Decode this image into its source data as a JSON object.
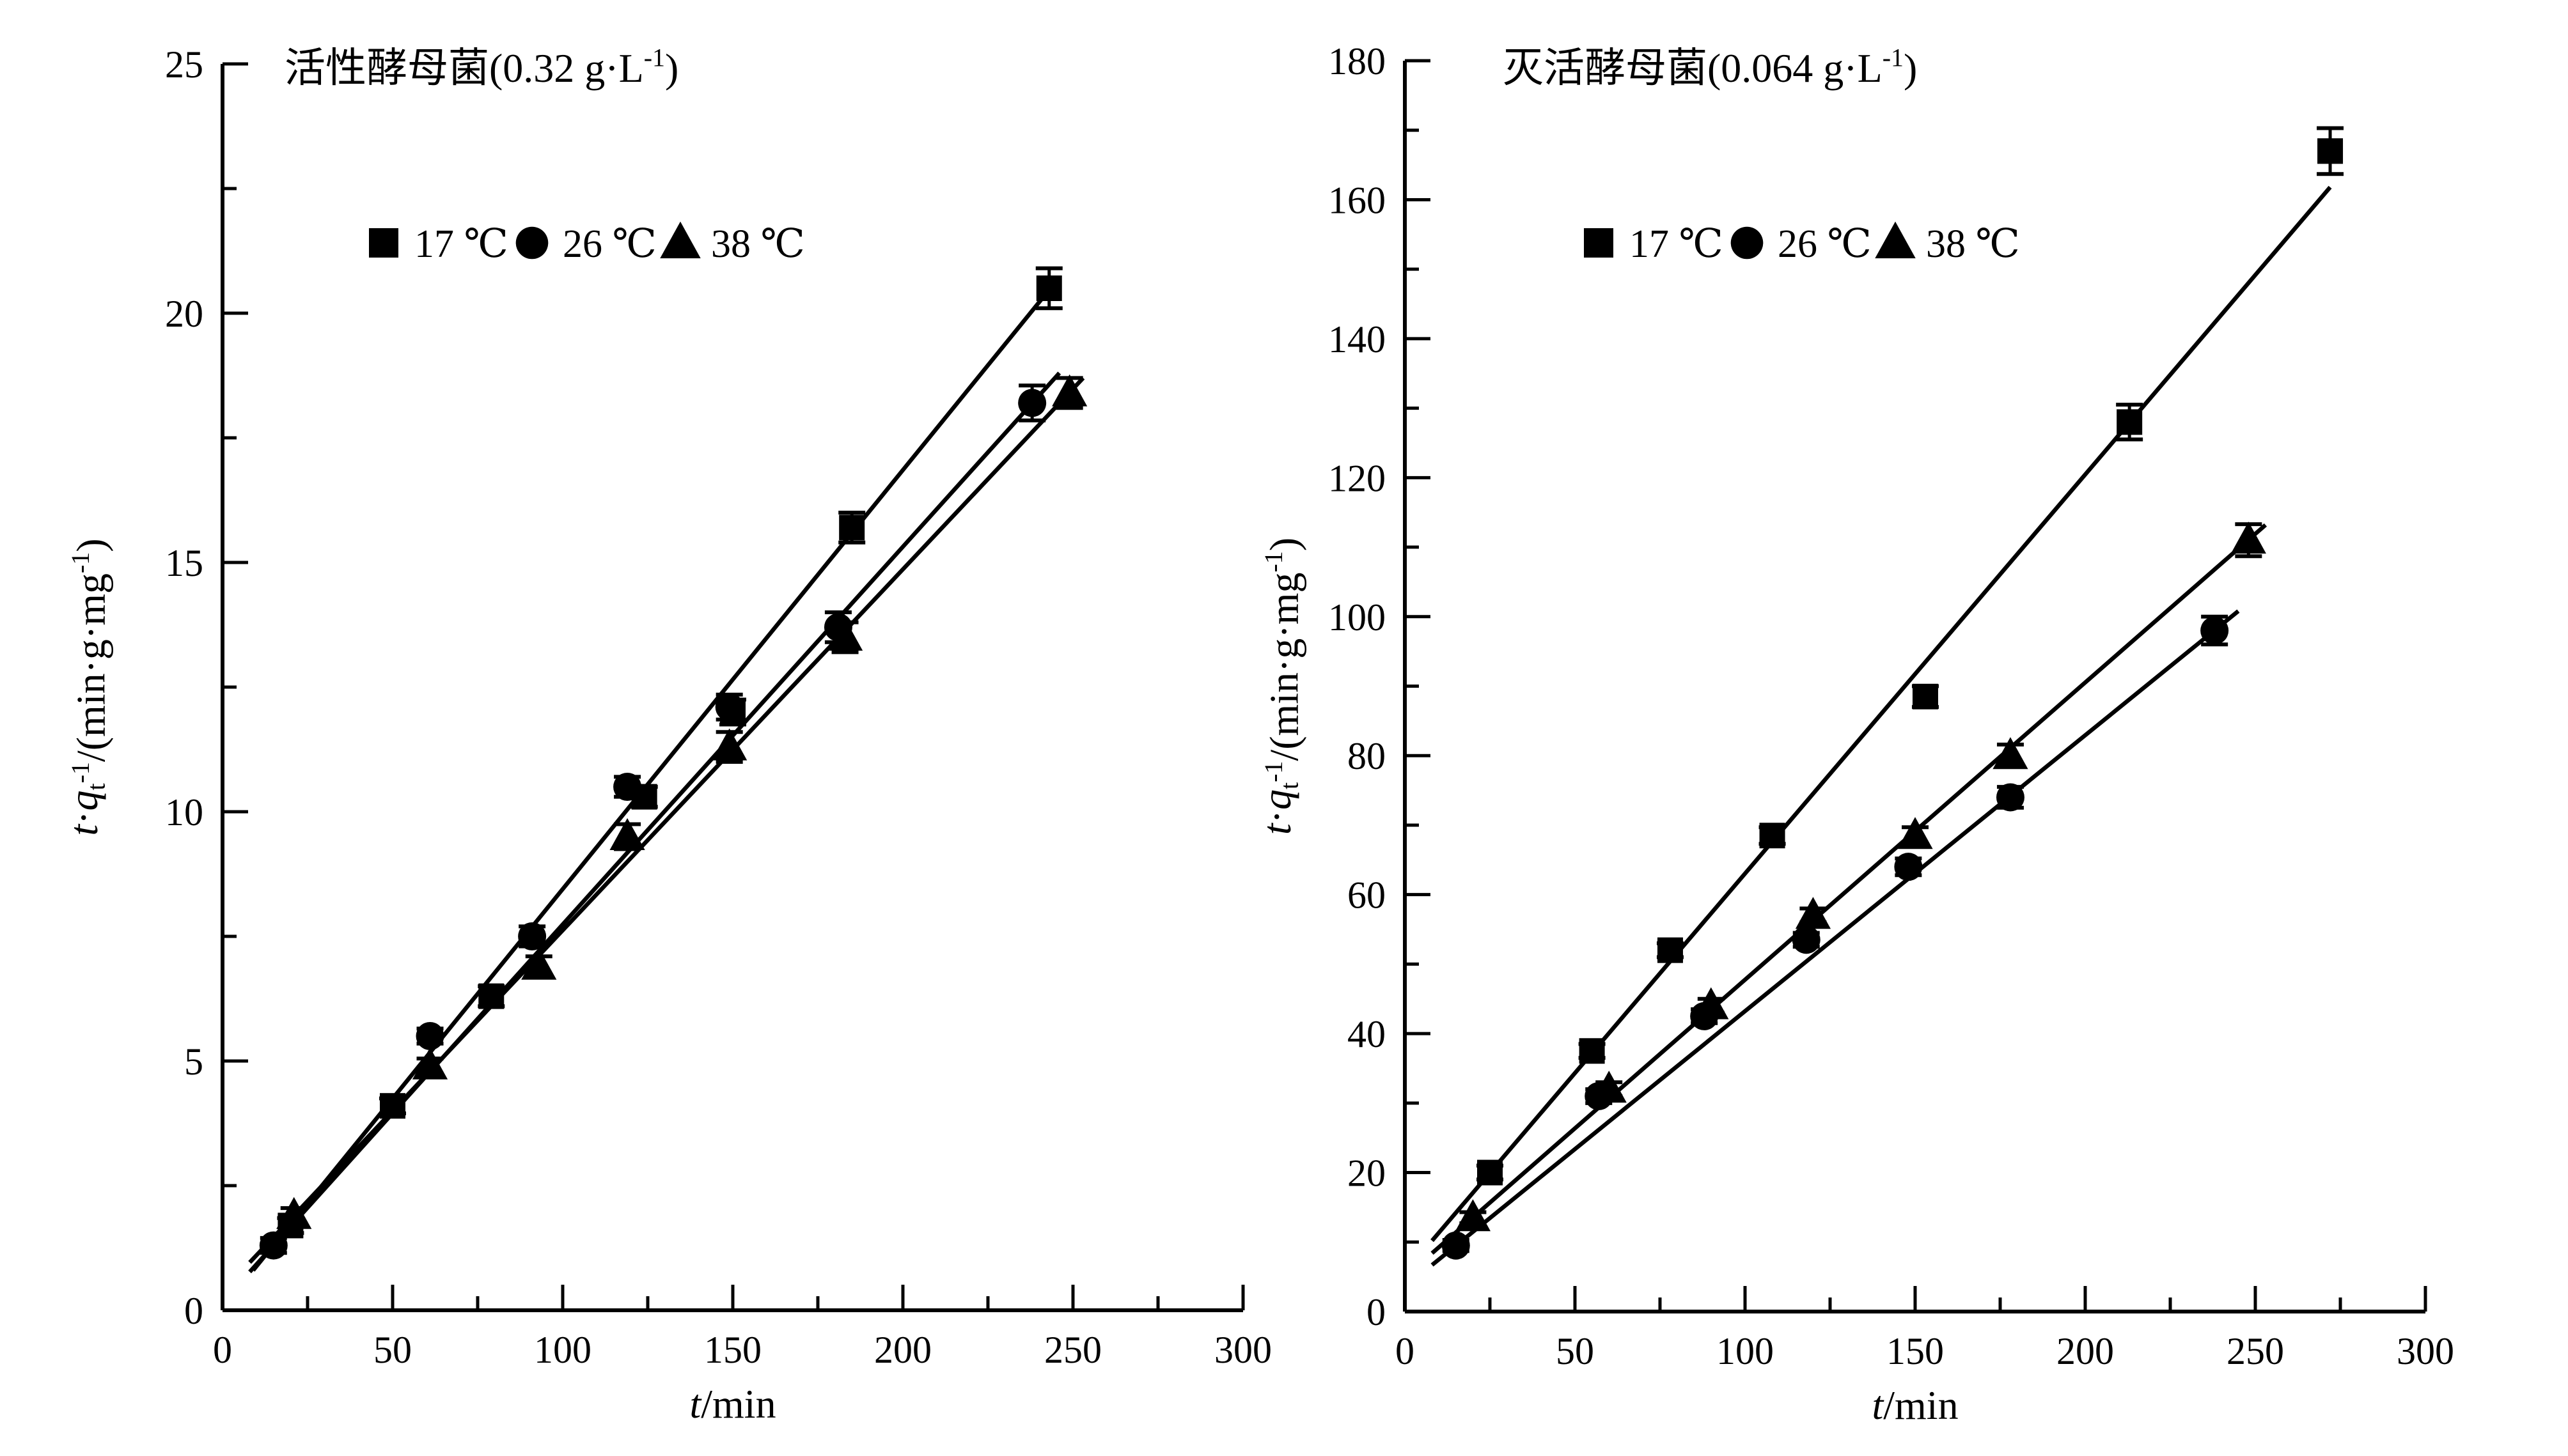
{
  "figure": {
    "background": "#ffffff",
    "ink_color": "#000000",
    "legend_items": [
      {
        "marker": "square",
        "label": "17 ℃"
      },
      {
        "marker": "circle",
        "label": "26 ℃"
      },
      {
        "marker": "triangle",
        "label": "38 ℃"
      }
    ]
  },
  "chart_data": [
    {
      "type": "scatter",
      "title_segments": [
        {
          "t": "活性酵母菌(0.32 g·L"
        },
        {
          "t": "-1",
          "sup": true
        },
        {
          "t": ")"
        }
      ],
      "title_plain": "活性酵母菌(0.32 g·L-1)",
      "xlabel_segments": [
        {
          "t": "t",
          "i": true
        },
        {
          "t": "/min"
        }
      ],
      "ylabel_segments": [
        {
          "t": "t",
          "i": true
        },
        {
          "t": "·"
        },
        {
          "t": "q",
          "i": true
        },
        {
          "t": "t",
          "sub": true
        },
        {
          "t": "-1",
          "sup": true
        },
        {
          "t": "/(min·g·mg"
        },
        {
          "t": "-1",
          "sup": true
        },
        {
          "t": ")"
        }
      ],
      "xlim": [
        0,
        300
      ],
      "ylim": [
        0,
        25
      ],
      "xticks": [
        0,
        50,
        100,
        150,
        200,
        250,
        300
      ],
      "yticks": [
        0,
        5,
        10,
        15,
        20,
        25
      ],
      "x_minor_step": 25,
      "y_minor_step": 2.5,
      "grid": false,
      "legend_position": "upper-left-inside",
      "series": [
        {
          "name": "17 ℃",
          "marker": "square",
          "points": [
            [
              20,
              1.7,
              0.15
            ],
            [
              50,
              4.1,
              0.15
            ],
            [
              79,
              6.3,
              0.2
            ],
            [
              124,
              10.3,
              0.2
            ],
            [
              150,
              12.0,
              0.25
            ],
            [
              185,
              15.7,
              0.3
            ],
            [
              243,
              20.5,
              0.4
            ]
          ],
          "fit": [
            [
              9,
              0.8
            ],
            [
              241,
              20.3
            ]
          ]
        },
        {
          "name": "26 ℃",
          "marker": "circle",
          "points": [
            [
              15,
              1.3,
              0.15
            ],
            [
              61,
              5.5,
              0.15
            ],
            [
              91,
              7.5,
              0.2
            ],
            [
              119,
              10.5,
              0.2
            ],
            [
              149,
              12.1,
              0.25
            ],
            [
              181,
              13.7,
              0.3
            ],
            [
              238,
              18.2,
              0.35
            ]
          ],
          "fit": [
            [
              8,
              0.77
            ],
            [
              246,
              18.8
            ]
          ]
        },
        {
          "name": "38 ℃",
          "marker": "triangle",
          "points": [
            [
              21,
              1.9,
              0.15
            ],
            [
              61,
              4.9,
              0.15
            ],
            [
              93,
              6.9,
              0.2
            ],
            [
              119,
              9.5,
              0.25
            ],
            [
              149,
              11.3,
              0.3
            ],
            [
              183,
              13.5,
              0.3
            ],
            [
              249,
              18.4,
              0.3
            ]
          ],
          "fit": [
            [
              8,
              0.96
            ],
            [
              253,
              18.7
            ]
          ]
        }
      ]
    },
    {
      "type": "scatter",
      "title_segments": [
        {
          "t": "灭活酵母菌(0.064 g·L"
        },
        {
          "t": "-1",
          "sup": true
        },
        {
          "t": ")"
        }
      ],
      "title_plain": "灭活酵母菌(0.064 g·L-1)",
      "xlabel_segments": [
        {
          "t": "t",
          "i": true
        },
        {
          "t": "/min"
        }
      ],
      "ylabel_segments": [
        {
          "t": "t",
          "i": true
        },
        {
          "t": "·"
        },
        {
          "t": "q",
          "i": true
        },
        {
          "t": "t",
          "sub": true
        },
        {
          "t": "-1",
          "sup": true
        },
        {
          "t": "/(min·g·mg"
        },
        {
          "t": "-1",
          "sup": true
        },
        {
          "t": ")"
        }
      ],
      "xlim": [
        0,
        300
      ],
      "ylim": [
        0,
        180
      ],
      "xticks": [
        0,
        50,
        100,
        150,
        200,
        250,
        300
      ],
      "yticks": [
        0,
        20,
        40,
        60,
        80,
        100,
        120,
        140,
        160,
        180
      ],
      "x_minor_step": 25,
      "y_minor_step": 10,
      "grid": false,
      "legend_position": "upper-left-inside",
      "series": [
        {
          "name": "17 ℃",
          "marker": "square",
          "points": [
            [
              25,
              20,
              1
            ],
            [
              55,
              37.5,
              1
            ],
            [
              78,
              52,
              1
            ],
            [
              108,
              68.5,
              1.2
            ],
            [
              153,
              88.5,
              1.5
            ],
            [
              213,
              128,
              2.5
            ],
            [
              272,
              167,
              3.3
            ]
          ],
          "fit": [
            [
              8,
              10.2
            ],
            [
              272,
              161.8
            ]
          ]
        },
        {
          "name": "26 ℃",
          "marker": "circle",
          "points": [
            [
              15,
              9.5,
              0.8
            ],
            [
              57,
              31,
              1
            ],
            [
              88,
              42.5,
              1
            ],
            [
              118,
              53.5,
              1
            ],
            [
              148,
              64,
              1.2
            ],
            [
              178,
              74,
              1.5
            ],
            [
              238,
              98,
              2
            ]
          ],
          "fit": [
            [
              8,
              6.7
            ],
            [
              245,
              100.8
            ]
          ]
        },
        {
          "name": "38 ℃",
          "marker": "triangle",
          "points": [
            [
              20,
              13.5,
              0.8
            ],
            [
              60,
              32,
              1
            ],
            [
              90,
              44,
              1
            ],
            [
              120,
              57,
              1
            ],
            [
              150,
              68.5,
              1.2
            ],
            [
              178,
              80,
              1.6
            ],
            [
              248,
              111,
              2.3
            ]
          ],
          "fit": [
            [
              8,
              8.4
            ],
            [
              253,
              113.2
            ]
          ]
        }
      ]
    }
  ]
}
